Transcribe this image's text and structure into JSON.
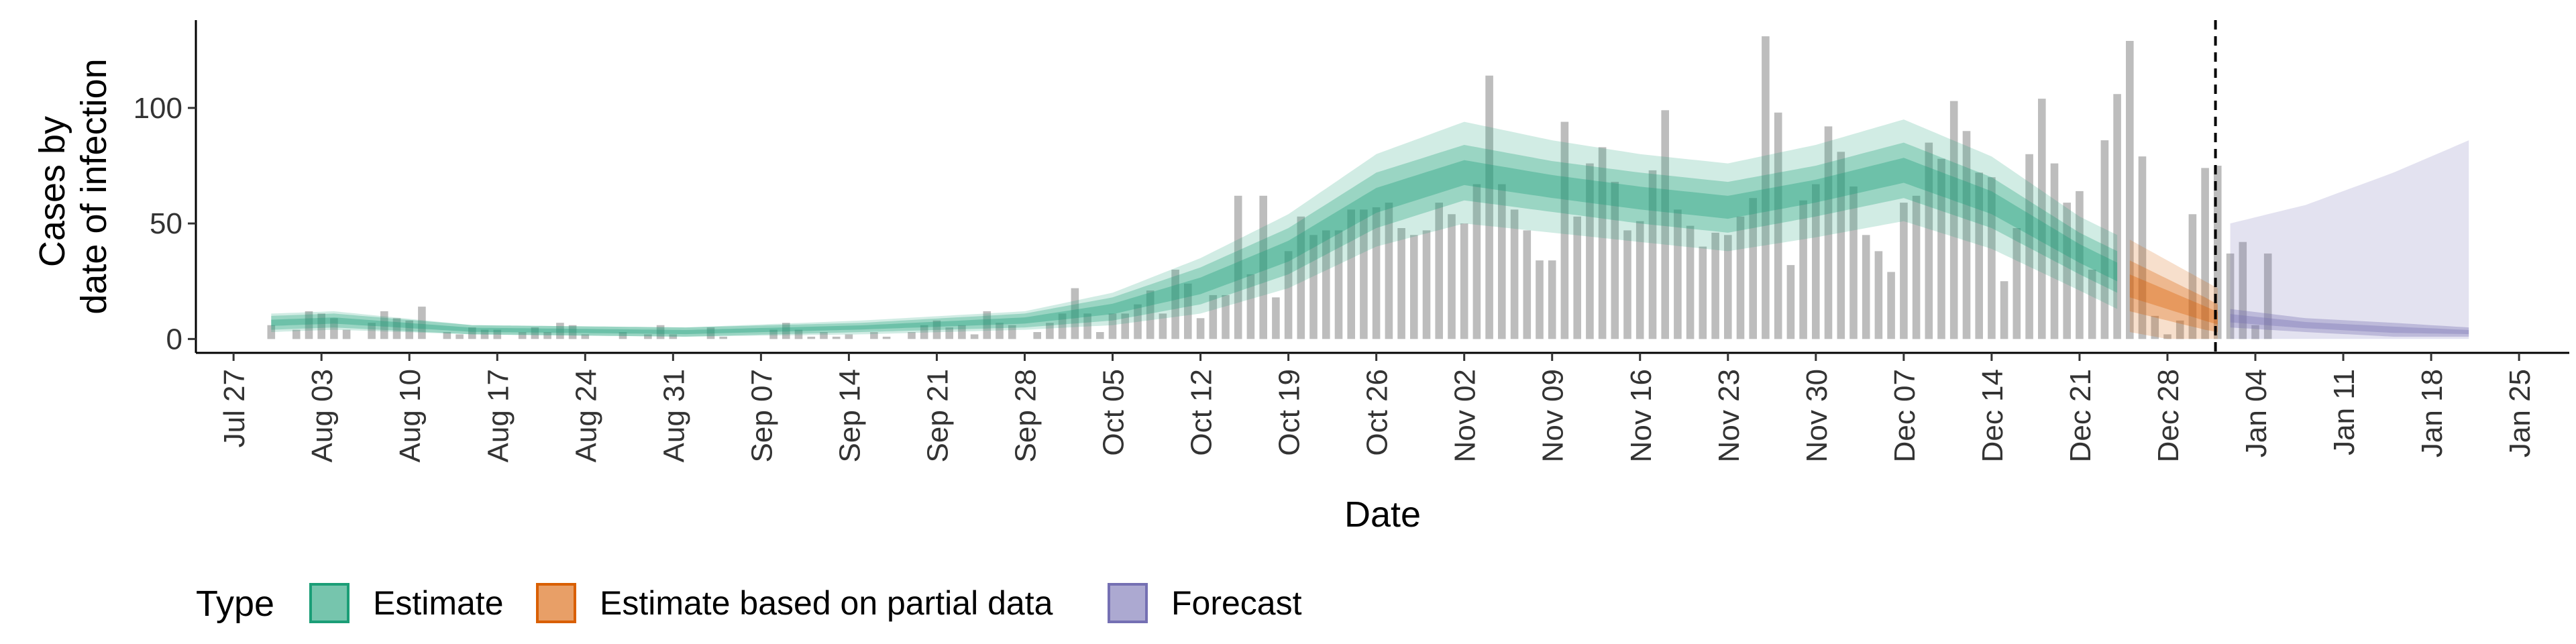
{
  "chart_data": {
    "type": "bar",
    "xlabel": "Date",
    "ylabel_lines": [
      "Cases by",
      "date of infection"
    ],
    "x_range": [
      "2020-07-24",
      "2021-01-29"
    ],
    "ylim": [
      -6,
      138
    ],
    "y_ticks": [
      0,
      50,
      100
    ],
    "y_tick_labels": [
      "0",
      "50",
      "100"
    ],
    "x_ticks": [
      {
        "date": "2020-07-27",
        "label": "Jul 27"
      },
      {
        "date": "2020-08-03",
        "label": "Aug 03"
      },
      {
        "date": "2020-08-10",
        "label": "Aug 10"
      },
      {
        "date": "2020-08-17",
        "label": "Aug 17"
      },
      {
        "date": "2020-08-24",
        "label": "Aug 24"
      },
      {
        "date": "2020-08-31",
        "label": "Aug 31"
      },
      {
        "date": "2020-09-07",
        "label": "Sep 07"
      },
      {
        "date": "2020-09-14",
        "label": "Sep 14"
      },
      {
        "date": "2020-09-21",
        "label": "Sep 21"
      },
      {
        "date": "2020-09-28",
        "label": "Sep 28"
      },
      {
        "date": "2020-10-05",
        "label": "Oct 05"
      },
      {
        "date": "2020-10-12",
        "label": "Oct 12"
      },
      {
        "date": "2020-10-19",
        "label": "Oct 19"
      },
      {
        "date": "2020-10-26",
        "label": "Oct 26"
      },
      {
        "date": "2020-11-02",
        "label": "Nov 02"
      },
      {
        "date": "2020-11-09",
        "label": "Nov 09"
      },
      {
        "date": "2020-11-16",
        "label": "Nov 16"
      },
      {
        "date": "2020-11-23",
        "label": "Nov 23"
      },
      {
        "date": "2020-11-30",
        "label": "Nov 30"
      },
      {
        "date": "2020-12-07",
        "label": "Dec 07"
      },
      {
        "date": "2020-12-14",
        "label": "Dec 14"
      },
      {
        "date": "2020-12-21",
        "label": "Dec 21"
      },
      {
        "date": "2020-12-28",
        "label": "Dec 28"
      },
      {
        "date": "2021-01-04",
        "label": "Jan 04"
      },
      {
        "date": "2021-01-11",
        "label": "Jan 11"
      },
      {
        "date": "2021-01-18",
        "label": "Jan 18"
      },
      {
        "date": "2021-01-25",
        "label": "Jan 25"
      }
    ],
    "forecast_start": "2021-01-02",
    "colors": {
      "bars": "#bdbdbd",
      "estimate": "#1b9e77",
      "partial": "#d95f02",
      "forecast": "#7570b3"
    },
    "observed_cases": {
      "start": "2020-07-30",
      "values": [
        6,
        0,
        4,
        12,
        11,
        9,
        4,
        0,
        7,
        12,
        9,
        8,
        14,
        0,
        3,
        2,
        5,
        4,
        4,
        0,
        3,
        5,
        3,
        7,
        6,
        2,
        0,
        0,
        3,
        0,
        2,
        6,
        2,
        0,
        0,
        5,
        1,
        0,
        0,
        0,
        4,
        7,
        4,
        1,
        3,
        1,
        2,
        0,
        3,
        1,
        0,
        3,
        6,
        8,
        5,
        6,
        2,
        12,
        7,
        6,
        0,
        3,
        7,
        11,
        22,
        11,
        3,
        11,
        11,
        15,
        21,
        11,
        30,
        24,
        9,
        19,
        19,
        62,
        28,
        62,
        18,
        38,
        53,
        45,
        47,
        47,
        56,
        56,
        57,
        59,
        48,
        45,
        47,
        59,
        54,
        50,
        67,
        114,
        67,
        56,
        47,
        34,
        34,
        94,
        53,
        76,
        83,
        68,
        47,
        51,
        73,
        99,
        56,
        49,
        40,
        46,
        45,
        53,
        61,
        131,
        98,
        32,
        60,
        67,
        92,
        81,
        66,
        45,
        38,
        29,
        59,
        62,
        85,
        78,
        103,
        90,
        72,
        70,
        25,
        48,
        80,
        104,
        76,
        59,
        64,
        30,
        86,
        106,
        129,
        79,
        10,
        2,
        8,
        54,
        74,
        75,
        37,
        42,
        6,
        37
      ]
    },
    "estimate": {
      "start": "2020-07-30",
      "knots": [
        [
          "2020-07-30",
          7,
          3,
          4
        ],
        [
          "2020-08-04",
          8,
          3,
          4
        ],
        [
          "2020-08-15",
          4,
          2,
          2
        ],
        [
          "2020-09-01",
          3,
          2,
          2
        ],
        [
          "2020-09-15",
          5,
          2,
          3
        ],
        [
          "2020-09-28",
          8,
          3,
          4
        ],
        [
          "2020-10-05",
          13,
          5,
          7
        ],
        [
          "2020-10-12",
          23,
          8,
          12
        ],
        [
          "2020-10-19",
          38,
          10,
          16
        ],
        [
          "2020-10-26",
          60,
          12,
          20
        ],
        [
          "2020-11-02",
          72,
          12,
          22
        ],
        [
          "2020-11-09",
          66,
          11,
          20
        ],
        [
          "2020-11-16",
          61,
          11,
          19
        ],
        [
          "2020-11-23",
          57,
          11,
          19
        ],
        [
          "2020-11-30",
          64,
          11,
          20
        ],
        [
          "2020-12-07",
          73,
          12,
          22
        ],
        [
          "2020-12-14",
          59,
          11,
          20
        ],
        [
          "2020-12-21",
          37,
          9,
          16
        ],
        [
          "2020-12-24",
          29,
          9,
          16
        ]
      ]
    },
    "partial_estimate": {
      "knots": [
        [
          "2020-12-25",
          23,
          11,
          20
        ],
        [
          "2020-12-28",
          17,
          9,
          17
        ],
        [
          "2020-12-31",
          11,
          7,
          14
        ],
        [
          "2021-01-01",
          9,
          6,
          13
        ]
      ]
    },
    "forecast": {
      "knots": [
        [
          "2021-01-02",
          9,
          4,
          50,
          0
        ],
        [
          "2021-01-08",
          6,
          3,
          58,
          0
        ],
        [
          "2021-01-15",
          4,
          3,
          72,
          0
        ],
        [
          "2021-01-21",
          3,
          2,
          86,
          0
        ]
      ]
    },
    "legend": {
      "title": "Type",
      "placement": "bottom-left",
      "items": [
        {
          "label": "Estimate",
          "color": "#1b9e77"
        },
        {
          "label": "Estimate based on partial data",
          "color": "#d95f02"
        },
        {
          "label": "Forecast",
          "color": "#7570b3"
        }
      ]
    },
    "grid": false
  }
}
